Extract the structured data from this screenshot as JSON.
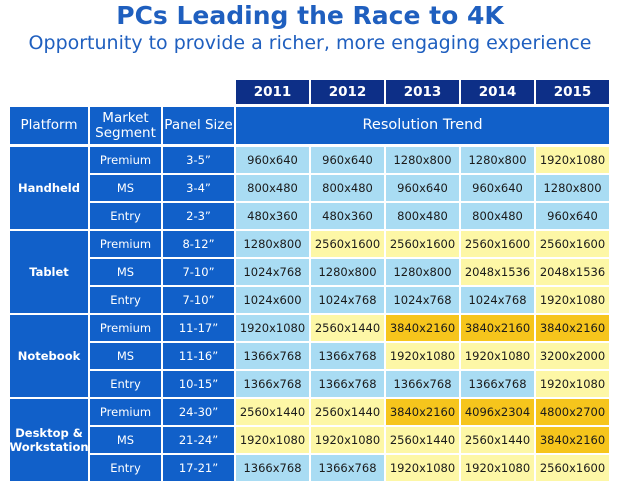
{
  "title": "PCs Leading the Race to 4K",
  "subtitle": "Opportunity to provide a richer, more engaging experience",
  "years": [
    "2011",
    "2012",
    "2013",
    "2014",
    "2015"
  ],
  "headers": {
    "platform": "Platform",
    "market_segment": "Market Segment",
    "panel_size": "Panel Size",
    "resolution_trend": "Resolution Trend"
  },
  "legend_colors": {
    "blue": "#a9dcf3",
    "yellow": "#fdf7a6",
    "gold": "#f6c51c",
    "header_blue": "#1160c9",
    "year_navy": "#0d2f87"
  },
  "platforms": [
    {
      "name": "Handheld",
      "rows": [
        {
          "segment": "Premium",
          "panel": "3-5”",
          "values": [
            "960x640",
            "960x640",
            "1280x800",
            "1280x800",
            "1920x1080"
          ],
          "colors": [
            "blue",
            "blue",
            "blue",
            "blue",
            "yellow"
          ]
        },
        {
          "segment": "MS",
          "panel": "3-4”",
          "values": [
            "800x480",
            "800x480",
            "960x640",
            "960x640",
            "1280x800"
          ],
          "colors": [
            "blue",
            "blue",
            "blue",
            "blue",
            "blue"
          ]
        },
        {
          "segment": "Entry",
          "panel": "2-3”",
          "values": [
            "480x360",
            "480x360",
            "800x480",
            "800x480",
            "960x640"
          ],
          "colors": [
            "blue",
            "blue",
            "blue",
            "blue",
            "blue"
          ]
        }
      ]
    },
    {
      "name": "Tablet",
      "rows": [
        {
          "segment": "Premium",
          "panel": "8-12”",
          "values": [
            "1280x800",
            "2560x1600",
            "2560x1600",
            "2560x1600",
            "2560x1600"
          ],
          "colors": [
            "blue",
            "yellow",
            "yellow",
            "yellow",
            "yellow"
          ]
        },
        {
          "segment": "MS",
          "panel": "7-10”",
          "values": [
            "1024x768",
            "1280x800",
            "1280x800",
            "2048x1536",
            "2048x1536"
          ],
          "colors": [
            "blue",
            "blue",
            "blue",
            "yellow",
            "yellow"
          ]
        },
        {
          "segment": "Entry",
          "panel": "7-10”",
          "values": [
            "1024x600",
            "1024x768",
            "1024x768",
            "1024x768",
            "1920x1080"
          ],
          "colors": [
            "blue",
            "blue",
            "blue",
            "blue",
            "yellow"
          ]
        }
      ]
    },
    {
      "name": "Notebook",
      "rows": [
        {
          "segment": "Premium",
          "panel": "11-17”",
          "values": [
            "1920x1080",
            "2560x1440",
            "3840x2160",
            "3840x2160",
            "3840x2160"
          ],
          "colors": [
            "blue",
            "yellow",
            "gold",
            "gold",
            "gold"
          ]
        },
        {
          "segment": "MS",
          "panel": "11-16”",
          "values": [
            "1366x768",
            "1366x768",
            "1920x1080",
            "1920x1080",
            "3200x2000"
          ],
          "colors": [
            "blue",
            "blue",
            "yellow",
            "yellow",
            "yellow"
          ]
        },
        {
          "segment": "Entry",
          "panel": "10-15”",
          "values": [
            "1366x768",
            "1366x768",
            "1366x768",
            "1366x768",
            "1920x1080"
          ],
          "colors": [
            "blue",
            "blue",
            "blue",
            "blue",
            "yellow"
          ]
        }
      ]
    },
    {
      "name": "Desktop & Workstation",
      "rows": [
        {
          "segment": "Premium",
          "panel": "24-30”",
          "values": [
            "2560x1440",
            "2560x1440",
            "3840x2160",
            "4096x2304",
            "4800x2700"
          ],
          "colors": [
            "yellow",
            "yellow",
            "gold",
            "gold",
            "gold"
          ]
        },
        {
          "segment": "MS",
          "panel": "21-24”",
          "values": [
            "1920x1080",
            "1920x1080",
            "2560x1440",
            "2560x1440",
            "3840x2160"
          ],
          "colors": [
            "yellow",
            "yellow",
            "yellow",
            "yellow",
            "gold"
          ]
        },
        {
          "segment": "Entry",
          "panel": "17-21”",
          "values": [
            "1366x768",
            "1366x768",
            "1920x1080",
            "1920x1080",
            "2560x1600"
          ],
          "colors": [
            "blue",
            "blue",
            "yellow",
            "yellow",
            "yellow"
          ]
        }
      ]
    }
  ]
}
